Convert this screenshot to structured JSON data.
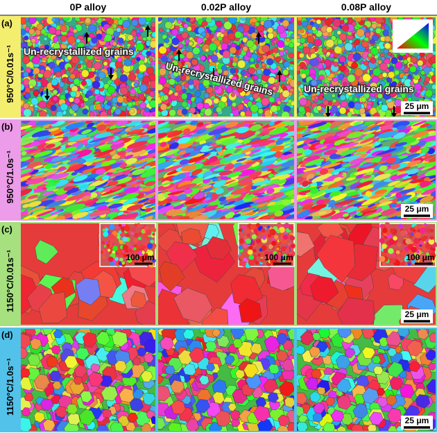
{
  "header": {
    "columns": [
      "0P alloy",
      "0.02P alloy",
      "0.08P alloy"
    ]
  },
  "rows": [
    {
      "label": "(a)",
      "condition": "950°C/0.01s⁻¹",
      "panels": [
        {
          "annotation": "Un-recrystallized grains"
        },
        {
          "annotation": "Un-recrystallized grains"
        },
        {
          "annotation": "Un-recrystallized grains",
          "scale_bar": "25 μm"
        }
      ]
    },
    {
      "label": "(b)",
      "condition": "950°C/1.0s⁻¹",
      "panels": [
        {},
        {},
        {
          "scale_bar": "25 μm"
        }
      ]
    },
    {
      "label": "(c)",
      "condition": "1150°C/0.01s⁻¹",
      "panels": [
        {
          "inset_scale_bar": "100 μm"
        },
        {
          "inset_scale_bar": "100 μm"
        },
        {
          "inset_scale_bar": "100 μm",
          "scale_bar": "25 μm"
        }
      ]
    },
    {
      "label": "(d)",
      "condition": "1150°C/1.0s⁻¹",
      "panels": [
        {},
        {},
        {
          "scale_bar": "25 μm"
        }
      ]
    }
  ]
}
